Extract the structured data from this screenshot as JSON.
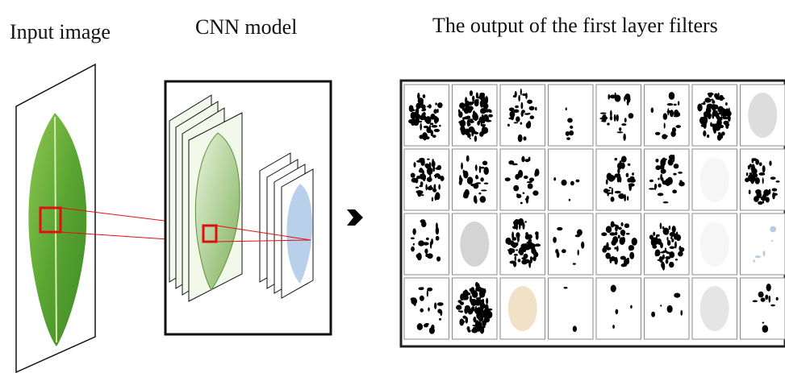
{
  "labels": {
    "input": "Input image",
    "model": "CNN model",
    "output": "The output of the first layer filters"
  }
}
